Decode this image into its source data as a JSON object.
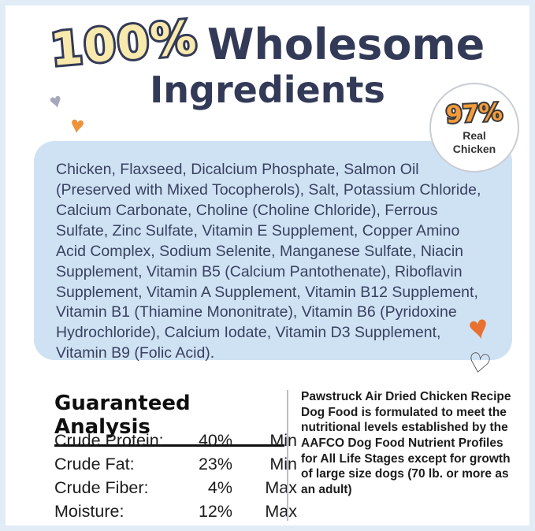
{
  "header": {
    "percent": "100%",
    "wholesome": "Wholesome",
    "ingredients": "Ingredients"
  },
  "badge": {
    "percent": "97%",
    "line1": "Real",
    "line2": "Chicken"
  },
  "ingredients": {
    "text": "Chicken, Flaxseed, Dicalcium Phosphate, Salmon Oil (Preserved with Mixed Tocopherols), Salt, Potassium Chloride, Calcium Carbonate, Choline (Choline Chloride), Ferrous Sulfate, Zinc Sulfate, Vitamin E Supplement, Copper Amino Acid Complex, Sodium Selenite, Manganese Sulfate, Niacin Supplement, Vitamin B5 (Calcium Pantothenate), Riboflavin Supplement, Vitamin A Supplement, Vitamin B12 Supplement, Vitamin B1 (Thiamine Mononitrate), Vitamin B6 (Pyridoxine Hydrochloride), Calcium Iodate, Vitamin D3 Supplement, Vitamin B9 (Folic Acid)."
  },
  "guaranteed_analysis": {
    "heading": "Guaranteed Analysis",
    "rows": [
      {
        "label": "Crude Protein:",
        "value": "40%",
        "limit": "Min"
      },
      {
        "label": "Crude Fat:",
        "value": "23%",
        "limit": "Min"
      },
      {
        "label": "Crude Fiber:",
        "value": "4%",
        "limit": "Max"
      },
      {
        "label": "Moisture:",
        "value": "12%",
        "limit": "Max"
      }
    ]
  },
  "aafco_note": {
    "text": "Pawstruck Air Dried Chicken Recipe Dog Food is formulated to meet the nutritional levels established by the AAFCO Dog Food Nutrient Profiles for All Life Stages except for growth of large size dogs (70 lb. or more as an adult)"
  },
  "icons": {
    "hearts": [
      "gray-heart",
      "orange-heart-left",
      "orange-heart-right",
      "white-outline-heart"
    ]
  },
  "colors": {
    "navy": "#323a57",
    "panel_blue": "#cfe2f4",
    "title_yellow": "#f8e9ac",
    "accent_orange": "#f49c3c",
    "frame_blue": "#e2ecf7",
    "text_dark": "#1c1c1c"
  }
}
